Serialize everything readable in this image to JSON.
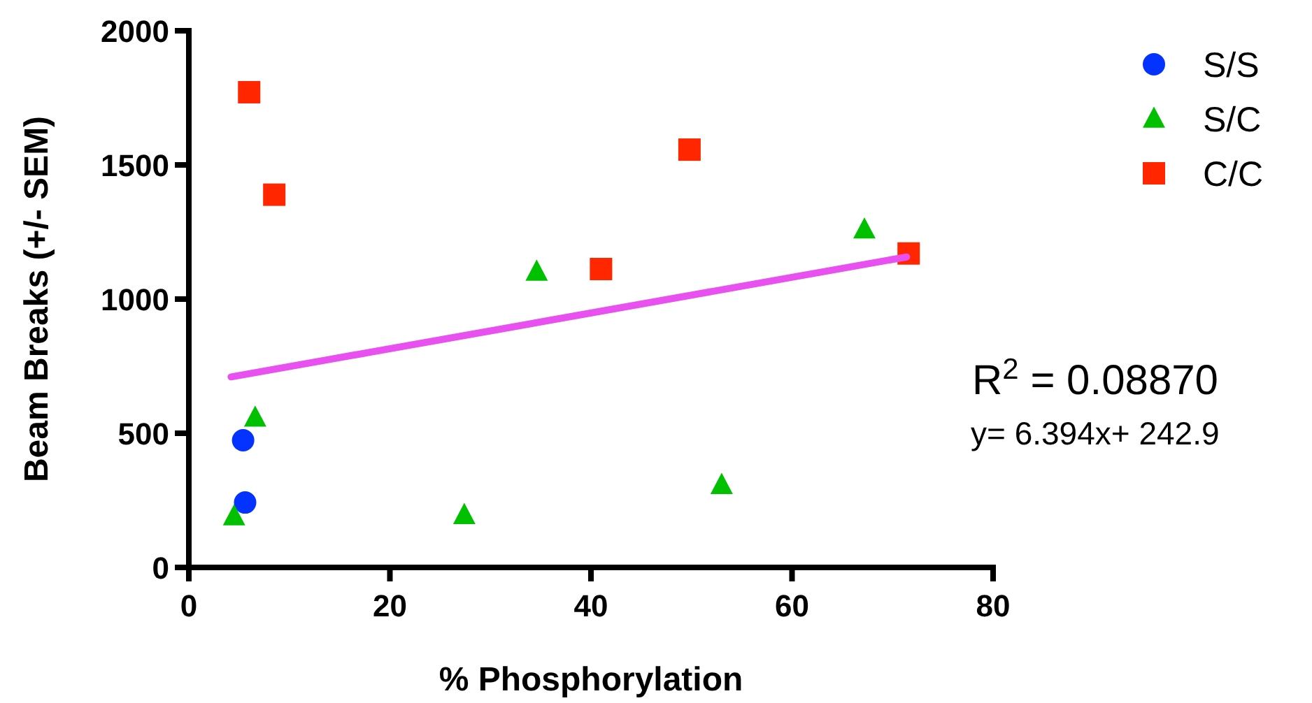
{
  "chart_data": {
    "type": "scatter",
    "xlabel": "% Phosphorylation",
    "ylabel": "Beam Breaks (+/- SEM)",
    "xlim": [
      0,
      80
    ],
    "xticks": [
      0,
      20,
      40,
      60,
      80
    ],
    "ylim": [
      0,
      2000
    ],
    "yticks": [
      0,
      500,
      1000,
      1500,
      2000
    ],
    "grid": false,
    "legend": "top right",
    "annotations": [
      "R$^{2}$ = 0.08870",
      "y= 6.394x+ 242.9"
    ],
    "series": [
      {
        "name": "S/S",
        "color": "#0433ff",
        "marker": "circle",
        "x": [
          5.4,
          5.6
        ],
        "values": [
          474,
          242
        ]
      },
      {
        "name": "S/C",
        "color": "#00c000",
        "marker": "triangle",
        "x": [
          4.5,
          6.6,
          27.4,
          34.6,
          53.0,
          67.2
        ],
        "values": [
          190,
          558,
          195,
          1102,
          307,
          1259
        ]
      },
      {
        "name": "C/C",
        "color": "#ff2600",
        "marker": "square",
        "x": [
          6.0,
          8.5,
          41.0,
          49.8,
          71.6
        ],
        "values": [
          1771,
          1389,
          1112,
          1557,
          1170
        ]
      },
      {
        "type": "line",
        "color": "#e850f0",
        "marker": "none",
        "x": [
          4.2,
          71.4
        ],
        "values": [
          710,
          1157
        ]
      }
    ]
  }
}
